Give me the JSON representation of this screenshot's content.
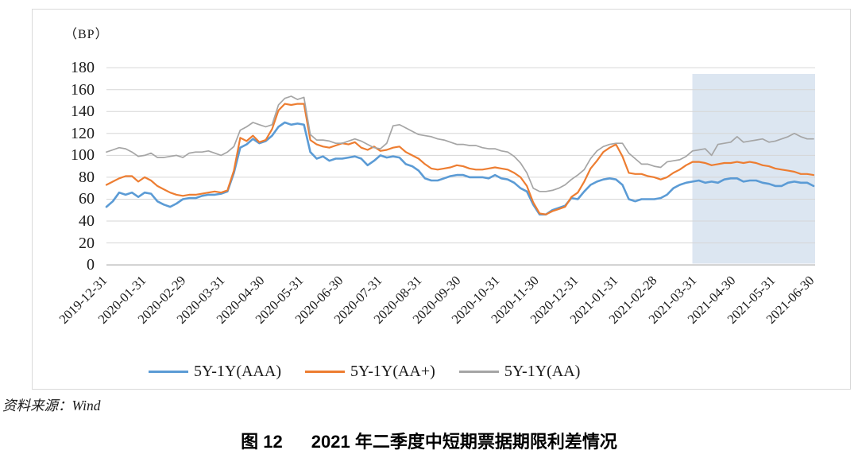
{
  "chart": {
    "unit_label": "（BP）",
    "y_ticks": [
      180,
      160,
      140,
      120,
      100,
      80,
      60,
      40,
      20,
      0
    ],
    "highlight_color": "#dce6f1",
    "grid_color": "#d6d6d6",
    "axis_color": "#b3b3b3"
  },
  "chart_data": {
    "type": "line",
    "title": "图 12 2021 年二季度中短期票据期限利差情况",
    "unit": "BP",
    "ylabel": "（BP）",
    "ylim": [
      0,
      180
    ],
    "y_tick_step": 20,
    "grid": "horizontal",
    "legend_position": "bottom",
    "x_axis_labels": [
      "2019-12-31",
      "2020-01-31",
      "2020-02-29",
      "2020-03-31",
      "2020-04-30",
      "2020-05-31",
      "2020-06-30",
      "2020-07-31",
      "2020-08-31",
      "2020-09-30",
      "2020-10-31",
      "2020-11-30",
      "2020-12-31",
      "2021-01-31",
      "2021-02-28",
      "2021-03-31",
      "2021-04-30",
      "2021-05-31",
      "2021-06-30"
    ],
    "highlight_region": {
      "from": "2021-03-31",
      "to": "2021-06-30"
    },
    "series": [
      {
        "name": "5Y-1Y(AAA)",
        "color": "#5B9BD5",
        "values": [
          53,
          58,
          66,
          64,
          66,
          62,
          66,
          65,
          58,
          55,
          53,
          56,
          60,
          61,
          61,
          63,
          64,
          64,
          65,
          67,
          84,
          107,
          110,
          115,
          111,
          113,
          118,
          126,
          130,
          128,
          129,
          128,
          103,
          97,
          99,
          95,
          97,
          97,
          98,
          99,
          97,
          91,
          95,
          100,
          98,
          99,
          98,
          92,
          90,
          86,
          79,
          77,
          77,
          79,
          81,
          82,
          82,
          80,
          80,
          80,
          79,
          82,
          79,
          78,
          75,
          70,
          67,
          55,
          46,
          46,
          50,
          52,
          54,
          61,
          60,
          67,
          73,
          76,
          78,
          79,
          78,
          73,
          60,
          58,
          60,
          60,
          60,
          61,
          64,
          70,
          73,
          75,
          76,
          77,
          75,
          76,
          75,
          78,
          79,
          79,
          76,
          77,
          77,
          75,
          74,
          72,
          72,
          75,
          76,
          75,
          75,
          72
        ]
      },
      {
        "name": "5Y-1Y(AA+)",
        "color": "#ED7D31",
        "values": [
          73,
          76,
          79,
          81,
          81,
          76,
          80,
          77,
          72,
          69,
          66,
          64,
          63,
          64,
          64,
          65,
          66,
          67,
          66,
          68,
          86,
          116,
          113,
          118,
          112,
          114,
          124,
          141,
          147,
          146,
          147,
          147,
          114,
          110,
          108,
          107,
          109,
          111,
          110,
          112,
          107,
          105,
          108,
          104,
          105,
          107,
          108,
          103,
          100,
          97,
          92,
          88,
          87,
          88,
          89,
          91,
          90,
          88,
          87,
          87,
          88,
          89,
          88,
          87,
          84,
          80,
          72,
          57,
          47,
          46,
          49,
          51,
          53,
          62,
          66,
          76,
          88,
          95,
          103,
          107,
          110,
          99,
          84,
          83,
          83,
          81,
          80,
          78,
          80,
          84,
          87,
          91,
          94,
          94,
          93,
          91,
          92,
          93,
          93,
          94,
          93,
          94,
          93,
          91,
          90,
          88,
          87,
          86,
          85,
          83,
          83,
          82
        ]
      },
      {
        "name": "5Y-1Y(AA)",
        "color": "#A5A5A5",
        "values": [
          103,
          105,
          107,
          106,
          103,
          99,
          100,
          102,
          98,
          98,
          99,
          100,
          98,
          102,
          103,
          103,
          104,
          102,
          100,
          103,
          108,
          123,
          126,
          130,
          128,
          126,
          128,
          146,
          152,
          154,
          151,
          153,
          119,
          114,
          114,
          113,
          111,
          111,
          113,
          115,
          113,
          110,
          107,
          106,
          111,
          127,
          128,
          125,
          122,
          119,
          118,
          117,
          115,
          114,
          112,
          110,
          110,
          109,
          109,
          107,
          106,
          106,
          104,
          103,
          99,
          93,
          84,
          70,
          67,
          67,
          68,
          70,
          73,
          78,
          82,
          87,
          97,
          104,
          108,
          110,
          111,
          111,
          102,
          97,
          92,
          92,
          90,
          89,
          94,
          95,
          96,
          99,
          104,
          105,
          106,
          100,
          110,
          111,
          112,
          117,
          112,
          113,
          114,
          115,
          112,
          113,
          115,
          117,
          120,
          117,
          115,
          115
        ]
      }
    ]
  },
  "source": {
    "label": "资料来源：Wind"
  },
  "caption": {
    "index": "图 12",
    "text": "2021 年二季度中短期票据期限利差情况"
  }
}
